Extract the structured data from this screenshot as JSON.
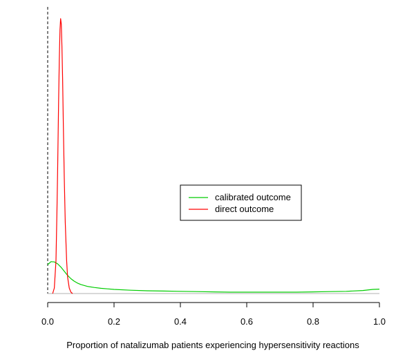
{
  "chart_data": {
    "type": "line",
    "title": "",
    "xlabel": "Proportion of natalizumab patients experiencing hypersensitivity reactions",
    "ylabel": "",
    "xlim": [
      0,
      1
    ],
    "ylim": [
      0,
      1
    ],
    "x_ticks": [
      "0.0",
      "0.2",
      "0.4",
      "0.6",
      "0.8",
      "1.0"
    ],
    "x_tick_values": [
      0,
      0.2,
      0.4,
      0.6,
      0.8,
      1.0
    ],
    "reference_vline_x": 0,
    "baseline_y": 0,
    "legend_position": "center-right",
    "series": [
      {
        "name": "calibrated outcome",
        "color": "#00cc00",
        "x": [
          0.0,
          0.01,
          0.02,
          0.03,
          0.04,
          0.05,
          0.06,
          0.07,
          0.08,
          0.09,
          0.1,
          0.12,
          0.14,
          0.16,
          0.18,
          0.2,
          0.25,
          0.3,
          0.35,
          0.4,
          0.45,
          0.5,
          0.55,
          0.6,
          0.65,
          0.7,
          0.75,
          0.8,
          0.85,
          0.9,
          0.95,
          0.98,
          1.0
        ],
        "y": [
          0.105,
          0.116,
          0.115,
          0.108,
          0.096,
          0.081,
          0.066,
          0.054,
          0.045,
          0.038,
          0.033,
          0.026,
          0.022,
          0.019,
          0.017,
          0.015,
          0.012,
          0.01,
          0.009,
          0.008,
          0.007,
          0.006,
          0.005,
          0.005,
          0.005,
          0.005,
          0.005,
          0.006,
          0.007,
          0.008,
          0.011,
          0.015,
          0.016
        ]
      },
      {
        "name": "direct outcome",
        "color": "#ff0000",
        "x": [
          0.015,
          0.02,
          0.025,
          0.028,
          0.03,
          0.033,
          0.035,
          0.037,
          0.039,
          0.041,
          0.043,
          0.045,
          0.047,
          0.05,
          0.053,
          0.057,
          0.06,
          0.065,
          0.07,
          0.075
        ],
        "y": [
          0.0,
          0.02,
          0.12,
          0.3,
          0.45,
          0.7,
          0.85,
          0.96,
          1.0,
          0.98,
          0.9,
          0.78,
          0.62,
          0.42,
          0.26,
          0.12,
          0.06,
          0.02,
          0.005,
          0.0
        ]
      }
    ]
  }
}
